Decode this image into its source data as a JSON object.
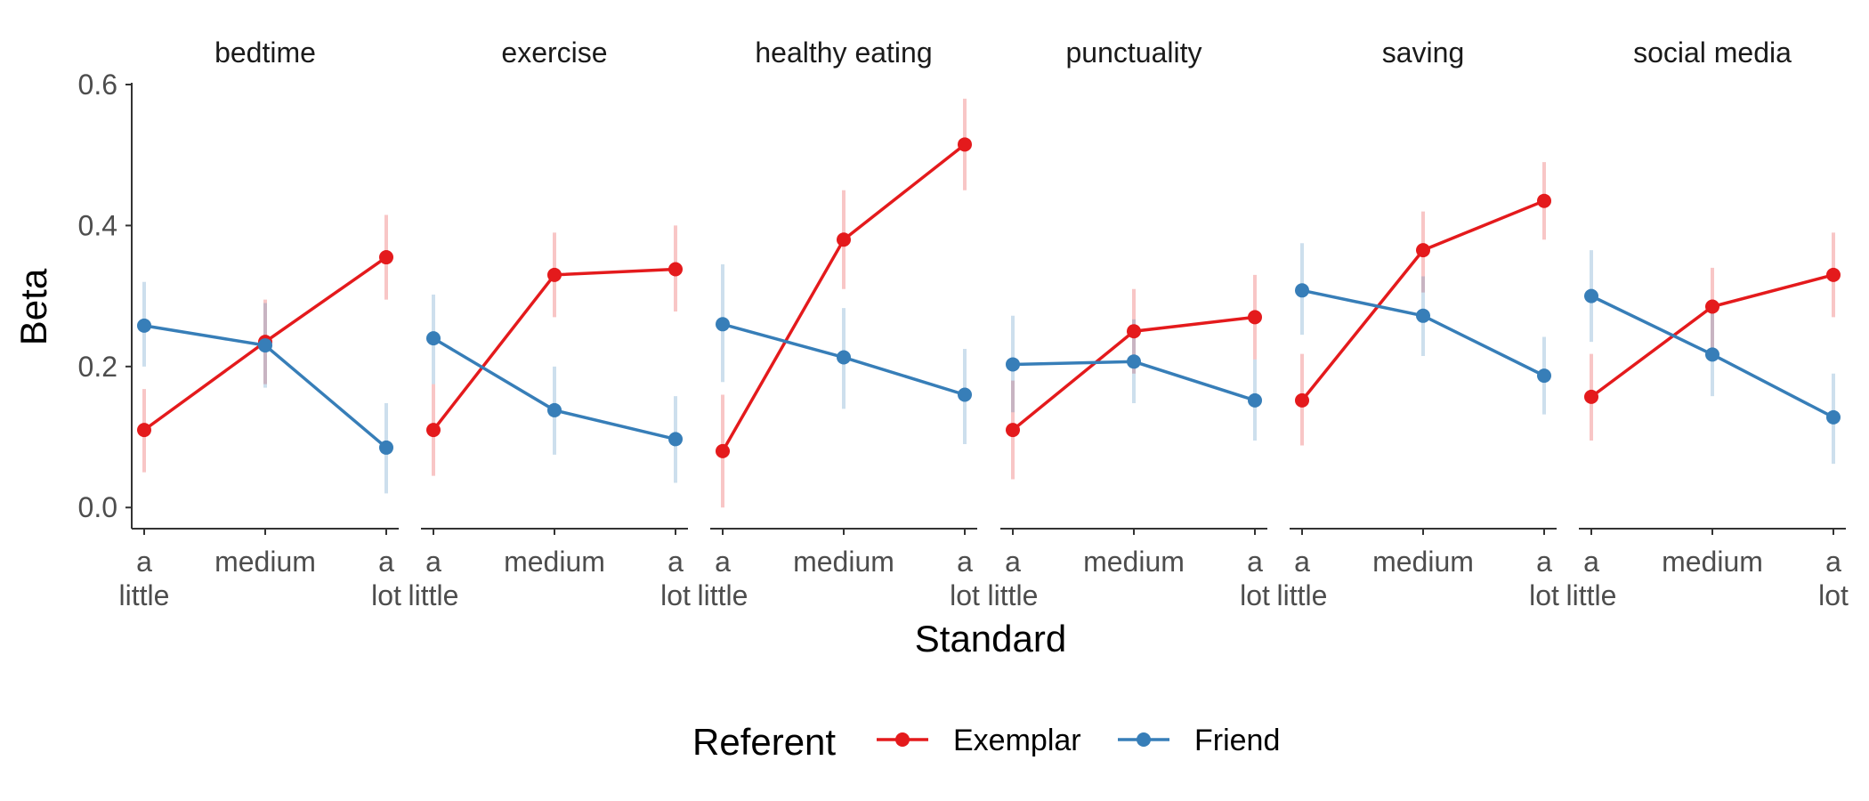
{
  "chart_data": {
    "type": "line",
    "facets": [
      "bedtime",
      "exercise",
      "healthy eating",
      "punctuality",
      "saving",
      "social media"
    ],
    "categories": [
      "a little",
      "medium",
      "a lot"
    ],
    "category_labels": [
      [
        "a",
        "little"
      ],
      [
        "medium"
      ],
      [
        "a",
        "lot"
      ]
    ],
    "xlabel": "Standard",
    "ylabel": "Beta",
    "ylim": [
      -0.03,
      0.6
    ],
    "yticks": [
      "0.0",
      "0.2",
      "0.4",
      "0.6"
    ],
    "grid": false,
    "legend": {
      "title": "Referent",
      "position": "bottom"
    },
    "series": [
      {
        "name": "Exemplar",
        "color": "#E41A1C",
        "values": [
          [
            0.11,
            0.235,
            0.355
          ],
          [
            0.11,
            0.33,
            0.338
          ],
          [
            0.08,
            0.38,
            0.515
          ],
          [
            0.11,
            0.25,
            0.27
          ],
          [
            0.152,
            0.365,
            0.435
          ],
          [
            0.157,
            0.285,
            0.33
          ]
        ],
        "lower": [
          [
            0.05,
            0.175,
            0.295
          ],
          [
            0.045,
            0.27,
            0.278
          ],
          [
            0.0,
            0.31,
            0.45
          ],
          [
            0.04,
            0.19,
            0.21
          ],
          [
            0.088,
            0.305,
            0.38
          ],
          [
            0.095,
            0.225,
            0.27
          ]
        ],
        "upper": [
          [
            0.168,
            0.295,
            0.415
          ],
          [
            0.175,
            0.39,
            0.4
          ],
          [
            0.16,
            0.45,
            0.58
          ],
          [
            0.18,
            0.31,
            0.33
          ],
          [
            0.218,
            0.42,
            0.49
          ],
          [
            0.218,
            0.34,
            0.39
          ]
        ]
      },
      {
        "name": "Friend",
        "color": "#377EB8",
        "values": [
          [
            0.258,
            0.23,
            0.085
          ],
          [
            0.24,
            0.138,
            0.097
          ],
          [
            0.26,
            0.213,
            0.16
          ],
          [
            0.203,
            0.207,
            0.152
          ],
          [
            0.308,
            0.272,
            0.187
          ],
          [
            0.3,
            0.217,
            0.128
          ]
        ],
        "lower": [
          [
            0.2,
            0.17,
            0.02
          ],
          [
            0.175,
            0.075,
            0.035
          ],
          [
            0.178,
            0.14,
            0.09
          ],
          [
            0.135,
            0.148,
            0.095
          ],
          [
            0.245,
            0.215,
            0.132
          ],
          [
            0.235,
            0.158,
            0.062
          ]
        ],
        "upper": [
          [
            0.32,
            0.29,
            0.148
          ],
          [
            0.302,
            0.2,
            0.158
          ],
          [
            0.345,
            0.283,
            0.225
          ],
          [
            0.272,
            0.267,
            0.21
          ],
          [
            0.375,
            0.328,
            0.242
          ],
          [
            0.365,
            0.278,
            0.19
          ]
        ]
      }
    ]
  }
}
